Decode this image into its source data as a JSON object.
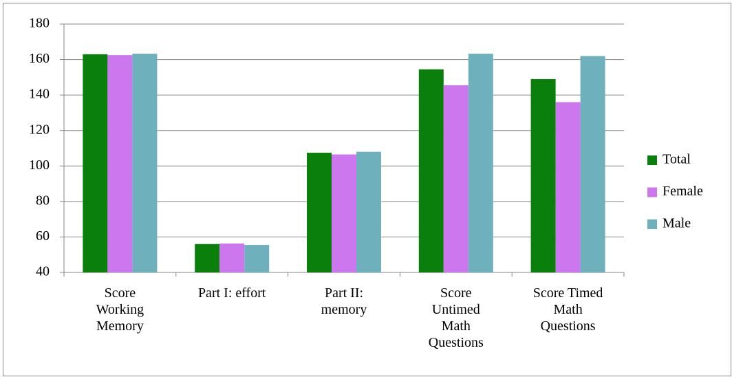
{
  "chart_data": {
    "type": "bar",
    "categories": [
      "Score Working Memory",
      "Part I: effort",
      "Part II: memory",
      "Score Untimed Math Questions",
      "Score Timed Math Questions"
    ],
    "series": [
      {
        "name": "Total",
        "color": "#0b7f0b",
        "values": [
          163,
          56,
          107.5,
          154.5,
          149
        ]
      },
      {
        "name": "Female",
        "color": "#cc77ee",
        "values": [
          162.5,
          56.3,
          106.5,
          145.5,
          136
        ]
      },
      {
        "name": "Male",
        "color": "#6fb0bd",
        "values": [
          163.3,
          55.5,
          108,
          163.3,
          162
        ]
      }
    ],
    "ylim": [
      40,
      180
    ],
    "yticks": [
      40,
      60,
      80,
      100,
      120,
      140,
      160,
      180
    ],
    "grid": true,
    "legend": "right"
  }
}
